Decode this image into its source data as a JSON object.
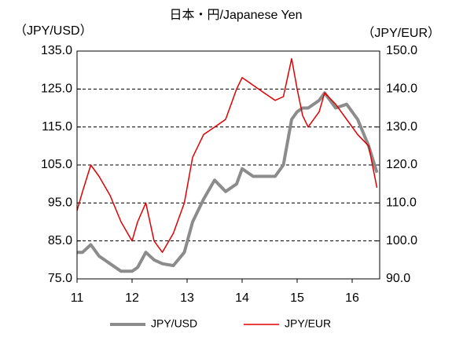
{
  "chart_data": {
    "type": "line",
    "title": "日本・円/Japanese Yen",
    "y_label": "（JPY/USD）",
    "y2_label": "（JPY/EUR）",
    "x": [
      11.0,
      11.1,
      11.25,
      11.4,
      11.6,
      11.8,
      12.0,
      12.1,
      12.25,
      12.4,
      12.55,
      12.75,
      12.95,
      13.1,
      13.3,
      13.5,
      13.7,
      13.9,
      14.0,
      14.2,
      14.4,
      14.6,
      14.75,
      14.9,
      15.0,
      15.1,
      15.2,
      15.4,
      15.5,
      15.7,
      15.9,
      16.1,
      16.3,
      16.45
    ],
    "series": [
      {
        "name": "JPY/USD",
        "color": "#8c8c8c",
        "axis": "y",
        "values": [
          82,
          82,
          84,
          81,
          79,
          77,
          77,
          78,
          82,
          80,
          79,
          78.5,
          82,
          90,
          96,
          101,
          98,
          100,
          104,
          102,
          102,
          102,
          105,
          117,
          119,
          120,
          120,
          122,
          124,
          120,
          121,
          117,
          110,
          103
        ]
      },
      {
        "name": "JPY/EUR",
        "color": "#e00000",
        "axis": "y2",
        "values": [
          108,
          113,
          120,
          117,
          112,
          105,
          100,
          105,
          110,
          100,
          97,
          102,
          110,
          122,
          128,
          130,
          132,
          140,
          143,
          141,
          139,
          137,
          138,
          148,
          140,
          133,
          130,
          134,
          139,
          136,
          132,
          128,
          125,
          114
        ]
      }
    ],
    "xlim": [
      11,
      16.5
    ],
    "xticks": [
      11,
      12,
      13,
      14,
      15,
      16
    ],
    "ylim": [
      75,
      135
    ],
    "yticks": [
      {
        "value": 75,
        "label": "75.0"
      },
      {
        "value": 85,
        "label": "85.0"
      },
      {
        "value": 95,
        "label": "95.0"
      },
      {
        "value": 105,
        "label": "105.0"
      },
      {
        "value": 115,
        "label": "115.0"
      },
      {
        "value": 125,
        "label": "125.0"
      },
      {
        "value": 135,
        "label": "135.0"
      }
    ],
    "y2lim": [
      90,
      150
    ],
    "y2ticks": [
      {
        "value": 90,
        "label": "90.0"
      },
      {
        "value": 100,
        "label": "100.0"
      },
      {
        "value": 110,
        "label": "110.0"
      },
      {
        "value": 120,
        "label": "120.0"
      },
      {
        "value": 130,
        "label": "130.0"
      },
      {
        "value": 140,
        "label": "140.0"
      },
      {
        "value": 150,
        "label": "150.0"
      }
    ],
    "grid": true,
    "legend": "bottom"
  }
}
